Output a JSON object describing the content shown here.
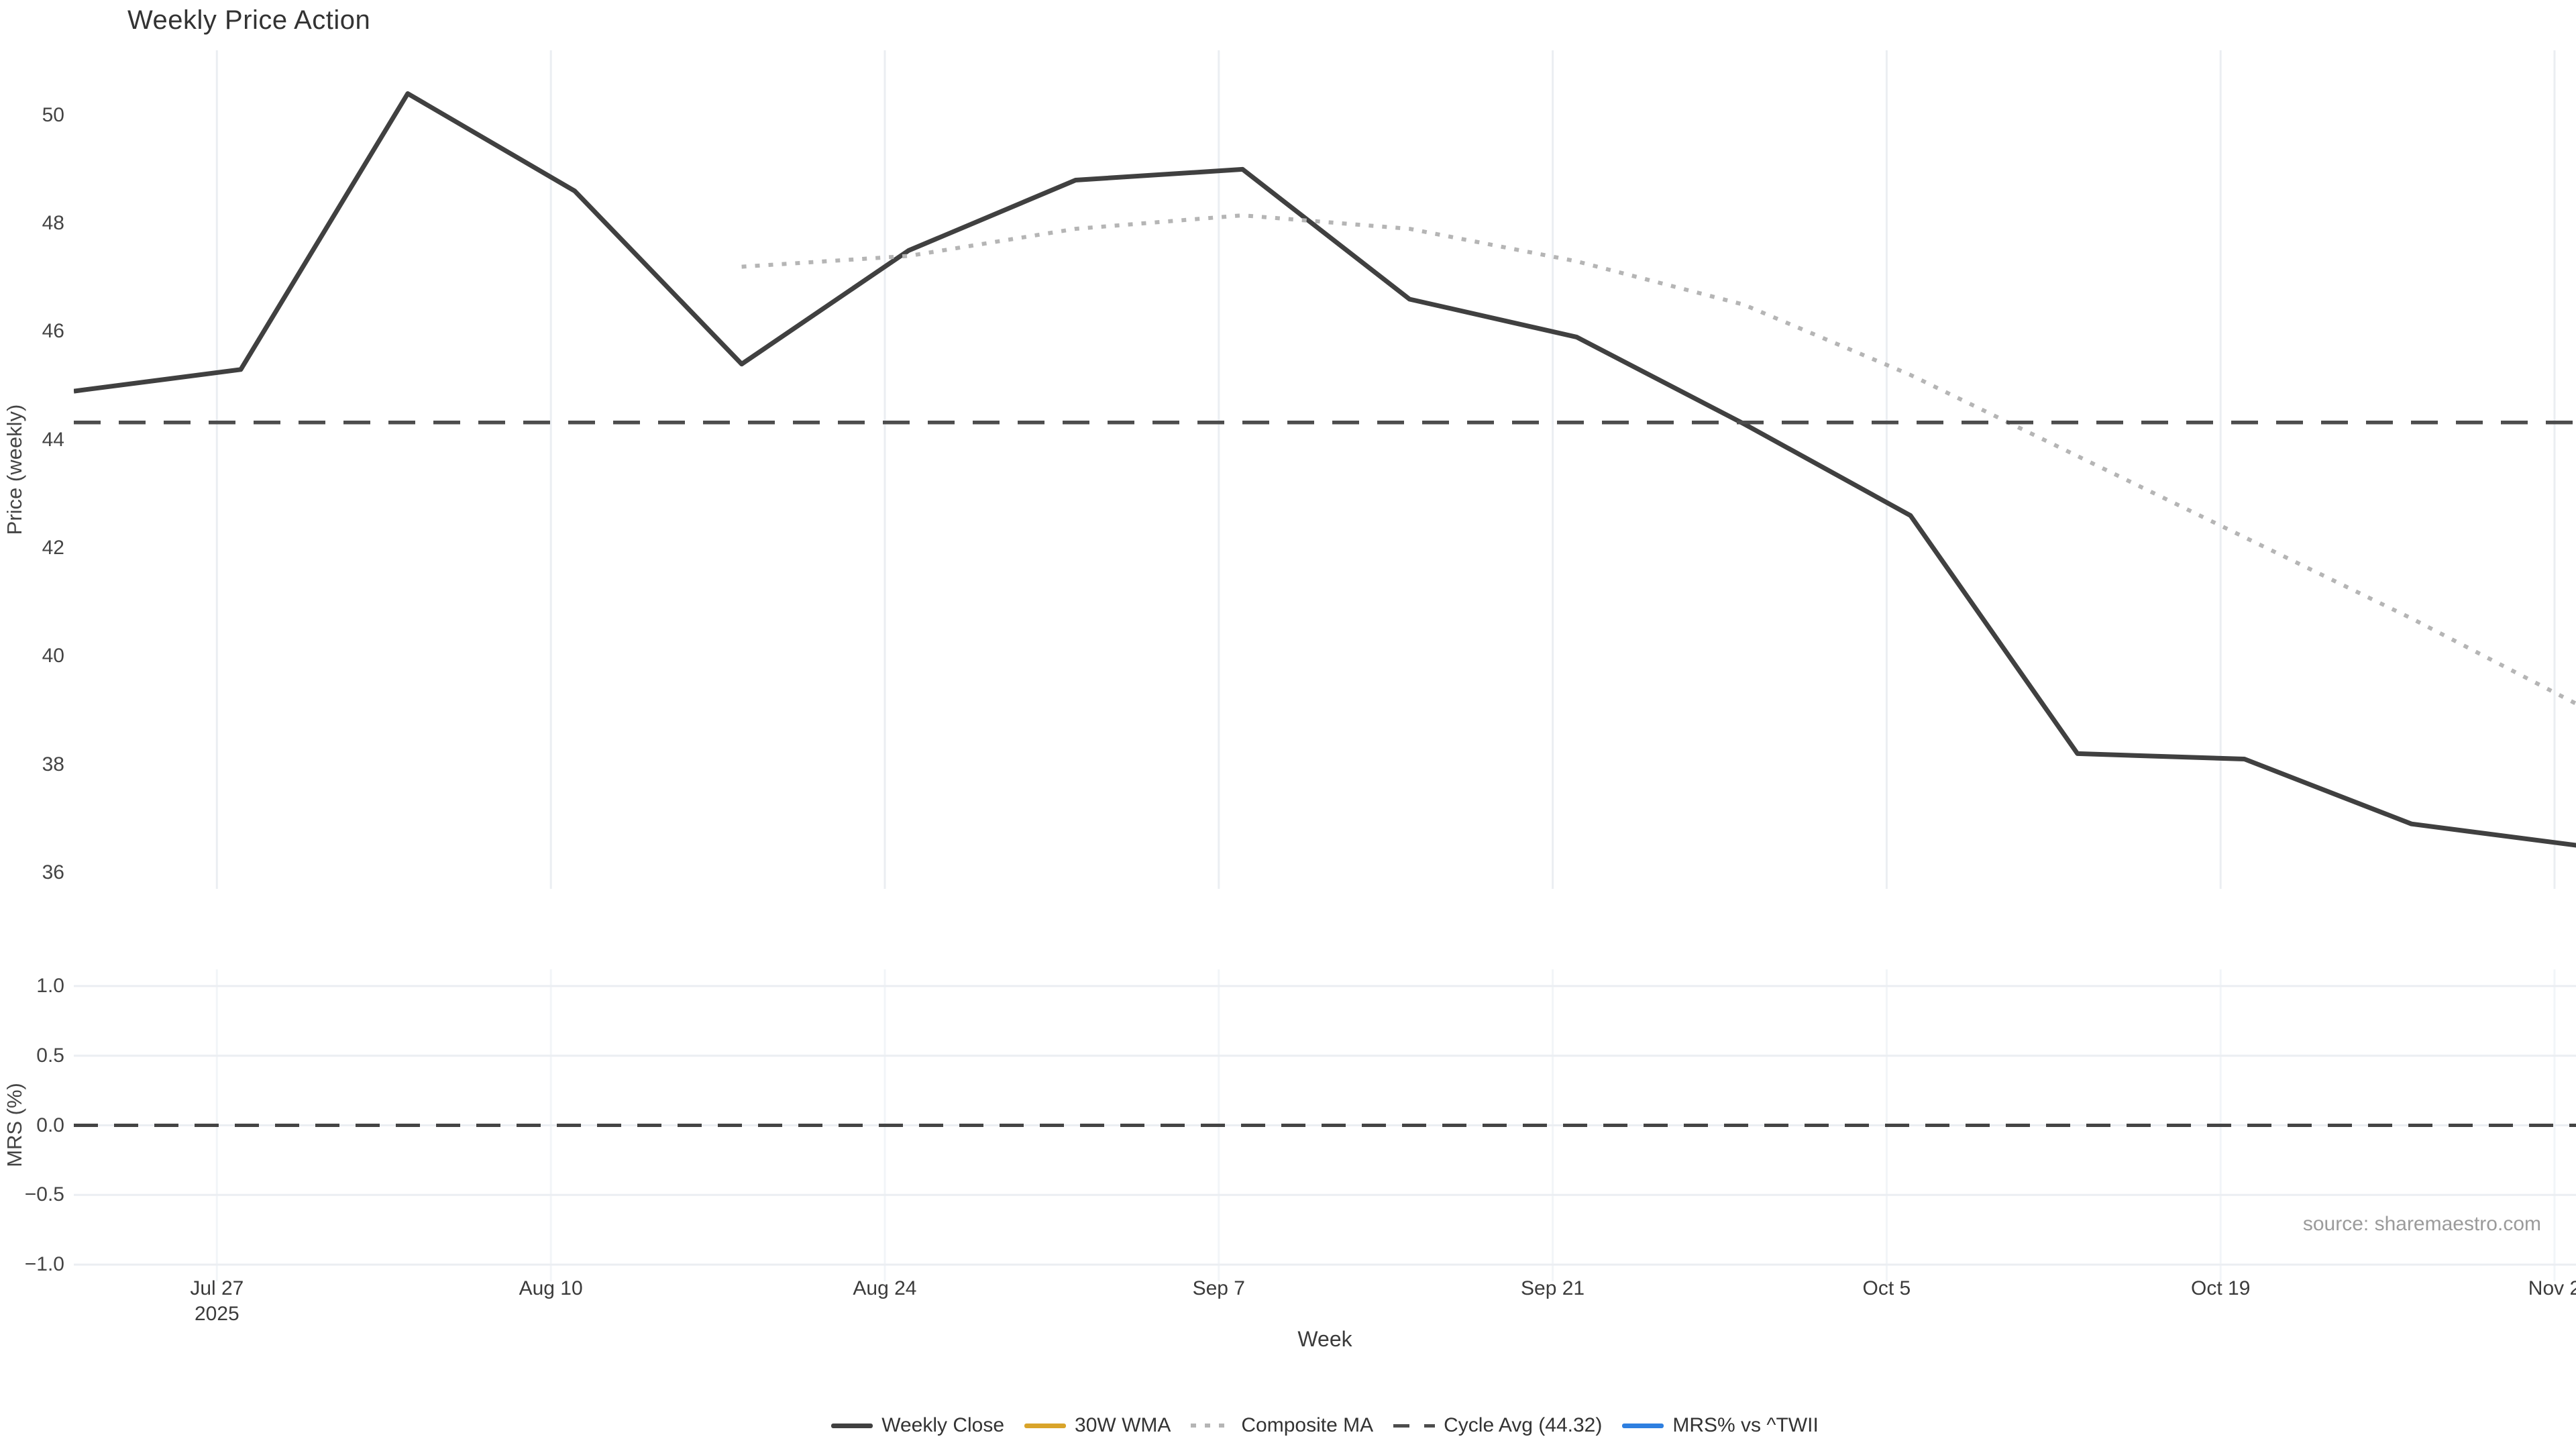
{
  "title": "Weekly Price Action",
  "source_note": "source: sharemaestro.com",
  "colors": {
    "background": "#ffffff",
    "weekly_close": "#404040",
    "wma_30w": "#d9a42a",
    "composite_ma": "#b5b5b5",
    "cycle_avg": "#4d4d4d",
    "mrs_line": "#2e7fe0",
    "gridline": "#ebeef2",
    "gridline_faint": "#f2f5f8",
    "tick_text": "#444444",
    "title_text": "#333333",
    "source_text": "#9b9b9b"
  },
  "legend": [
    {
      "label": "Weekly Close",
      "color": "#404040",
      "style": "solid"
    },
    {
      "label": "30W WMA",
      "color": "#d9a42a",
      "style": "solid"
    },
    {
      "label": "Composite MA",
      "color": "#b5b5b5",
      "style": "dotted"
    },
    {
      "label": "Cycle Avg (44.32)",
      "color": "#4d4d4d",
      "style": "dashed"
    },
    {
      "label": "MRS% vs ^TWII",
      "color": "#2e7fe0",
      "style": "solid"
    }
  ],
  "x_axis": {
    "label": "Week",
    "range_days": [
      1,
      105.9
    ],
    "ticks": [
      {
        "label": "Jul 27",
        "sublabel": "2025",
        "day": 7
      },
      {
        "label": "Aug 10",
        "sublabel": "",
        "day": 21
      },
      {
        "label": "Aug 24",
        "sublabel": "",
        "day": 35
      },
      {
        "label": "Sep 7",
        "sublabel": "",
        "day": 49
      },
      {
        "label": "Sep 21",
        "sublabel": "",
        "day": 63
      },
      {
        "label": "Oct 5",
        "sublabel": "",
        "day": 77
      },
      {
        "label": "Oct 19",
        "sublabel": "",
        "day": 91
      },
      {
        "label": "Nov 2",
        "sublabel": "",
        "day": 105
      }
    ]
  },
  "price_panel": {
    "ylabel": "Price (weekly)",
    "yrange": [
      35.7,
      51.2
    ],
    "yticks": [
      50,
      48,
      46,
      44,
      42,
      40,
      38,
      36
    ]
  },
  "mrs_panel": {
    "ylabel": "MRS (%)",
    "yrange": [
      -1.12,
      1.12
    ],
    "yticks": [
      {
        "label": "1.0",
        "value": 1.0
      },
      {
        "label": "0.5",
        "value": 0.5
      },
      {
        "label": "0.0",
        "value": 0.0
      },
      {
        "label": "−0.5",
        "value": -0.5
      },
      {
        "label": "−1.0",
        "value": -1.0
      }
    ],
    "zero_line": 0.0
  },
  "chart_data": {
    "type": "line",
    "title": "Weekly Price Action",
    "xlabel": "Week",
    "x_tick_labels": [
      "Jul 27 2025",
      "Aug 10",
      "Aug 24",
      "Sep 7",
      "Sep 21",
      "Oct 5",
      "Oct 19",
      "Nov 2"
    ],
    "panels": [
      {
        "name": "price",
        "ylabel": "Price (weekly)",
        "ylim": [
          35.7,
          51.2
        ],
        "grid": "vertical",
        "series": [
          {
            "name": "Weekly Close",
            "style": "solid",
            "color": "#404040",
            "x_days": [
              1,
              8,
              15,
              22,
              29,
              36,
              43,
              50,
              57,
              64,
              71,
              78,
              85,
              92,
              99,
              106
            ],
            "values": [
              44.9,
              45.3,
              50.4,
              48.6,
              45.4,
              47.5,
              48.8,
              49.0,
              46.6,
              45.9,
              44.3,
              42.6,
              38.2,
              38.1,
              36.9,
              36.5
            ]
          },
          {
            "name": "Composite MA",
            "style": "dotted",
            "color": "#b5b5b5",
            "x_days": [
              29,
              36,
              43,
              50,
              57,
              64,
              71,
              78,
              85,
              92,
              99,
              106
            ],
            "values": [
              47.2,
              47.4,
              47.9,
              48.15,
              47.9,
              47.3,
              46.5,
              45.2,
              43.7,
              42.2,
              40.7,
              39.1
            ]
          },
          {
            "name": "30W WMA",
            "style": "solid",
            "color": "#d9a42a",
            "x_days": [],
            "values": [],
            "note": "legend entry visible, line not visible in plotted range"
          },
          {
            "name": "Cycle Avg",
            "style": "dashed-horizontal",
            "color": "#4d4d4d",
            "value": 44.32
          }
        ]
      },
      {
        "name": "mrs",
        "ylabel": "MRS (%)",
        "ylim": [
          -1.12,
          1.12
        ],
        "grid": "horizontal",
        "series": [
          {
            "name": "MRS% vs ^TWII",
            "style": "solid",
            "color": "#2e7fe0",
            "x_days": [],
            "values": [],
            "note": "legend entry visible, line not visible in plotted range"
          },
          {
            "name": "zero reference",
            "style": "dashed-horizontal",
            "color": "#444444",
            "value": 0.0
          }
        ]
      }
    ],
    "legend_position": "bottom-center"
  }
}
